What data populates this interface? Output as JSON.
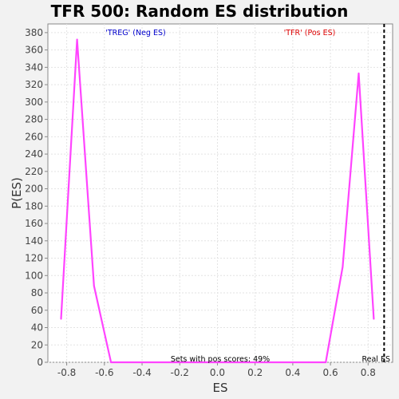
{
  "chart_data": {
    "type": "line",
    "title": "TFR 500: Random ES distribution",
    "xlabel": "ES",
    "ylabel": "P(ES)",
    "xlim": [
      -0.9,
      0.93
    ],
    "ylim": [
      0,
      390
    ],
    "xticks": [
      "-0.8",
      "-0.6",
      "-0.4",
      "-0.2",
      "0.0",
      "0.2",
      "0.4",
      "0.6",
      "0.8"
    ],
    "xtick_values": [
      -0.8,
      -0.6,
      -0.4,
      -0.2,
      0.0,
      0.2,
      0.4,
      0.6,
      0.8
    ],
    "yticks": [
      0,
      20,
      40,
      60,
      80,
      100,
      120,
      140,
      160,
      180,
      200,
      220,
      240,
      260,
      280,
      300,
      320,
      340,
      360,
      380
    ],
    "series": [
      {
        "color": "#ff44ff",
        "x": [
          -0.83,
          -0.745,
          -0.655,
          -0.565,
          -0.48,
          0.0,
          0.48,
          0.575,
          0.665,
          0.75,
          0.83
        ],
        "y": [
          50,
          372,
          88,
          0,
          0,
          0,
          0,
          0,
          110,
          333,
          50
        ]
      }
    ],
    "real_es": 0.885,
    "annotations": {
      "neg_label": "'TREG' (Neg ES)",
      "pos_label": "'TFR' (Pos ES)",
      "pos_scores": "Sets with pos scores: 49%",
      "real_es_label": "Real ES"
    },
    "colors": {
      "neg_label": "#0000cc",
      "pos_label": "#dd0000",
      "line": "#ff44ff"
    },
    "grid": true
  }
}
